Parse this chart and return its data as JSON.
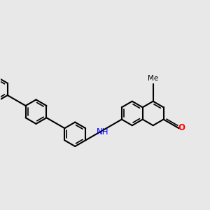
{
  "bg": "#e8e8e8",
  "bc": "#000000",
  "nc": "#0000ff",
  "oc": "#ff0000",
  "lw": 1.5,
  "lw2": 1.2,
  "fs_label": 8.5,
  "fs_me": 7.5,
  "figsize": [
    3.0,
    3.0
  ],
  "dpi": 100,
  "xlim": [
    0.0,
    10.0
  ],
  "ylim": [
    2.5,
    8.5
  ]
}
